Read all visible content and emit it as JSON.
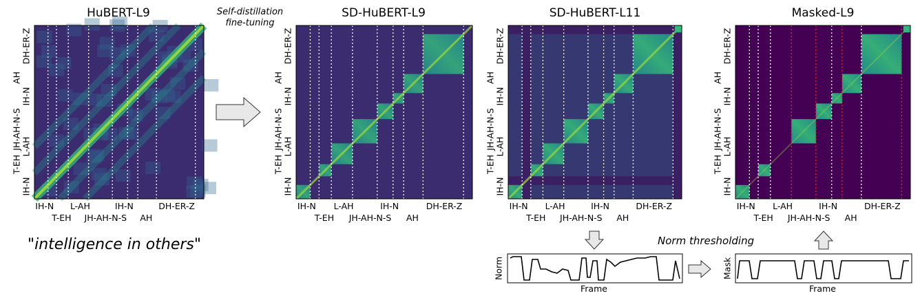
{
  "panels": {
    "hubert": {
      "title": "HuBERT-L9"
    },
    "sd_l9": {
      "title": "SD-HuBERT-L9"
    },
    "sd_l11": {
      "title": "SD-HuBERT-L11"
    },
    "masked": {
      "title": "Masked-L9"
    }
  },
  "x_labels_top": [
    "IH-N",
    "L-AH",
    "IH-N",
    "DH-ER-Z"
  ],
  "x_labels_bottom": [
    "T-EH",
    "JH-AH-N-S",
    "AH"
  ],
  "y_labels": [
    "IH-N",
    "T-EH",
    "L-AH",
    "JH-AH-N-S",
    "IH-N",
    "AH",
    "DH-ER-Z"
  ],
  "arrow_caption": {
    "line1": "Self-distillation",
    "line2": "fine-tuning"
  },
  "quote": {
    "open": "\"",
    "text": "intelligence in others",
    "close": "\""
  },
  "norm_thresholding": "Norm thresholding",
  "plots": {
    "norm": {
      "ylabel": "Norm",
      "xlabel": "Frame"
    },
    "mask": {
      "ylabel": "Mask",
      "xlabel": "Frame"
    }
  },
  "colors": {
    "viridis_dark": "#440154",
    "viridis_deep": "#3b2c6f",
    "viridis_blue": "#31688e",
    "viridis_teal": "#21918c",
    "viridis_green": "#35b779",
    "viridis_yellow": "#fde725",
    "boundary_white": "#ffffff",
    "boundary_red": "#e8231f"
  }
}
